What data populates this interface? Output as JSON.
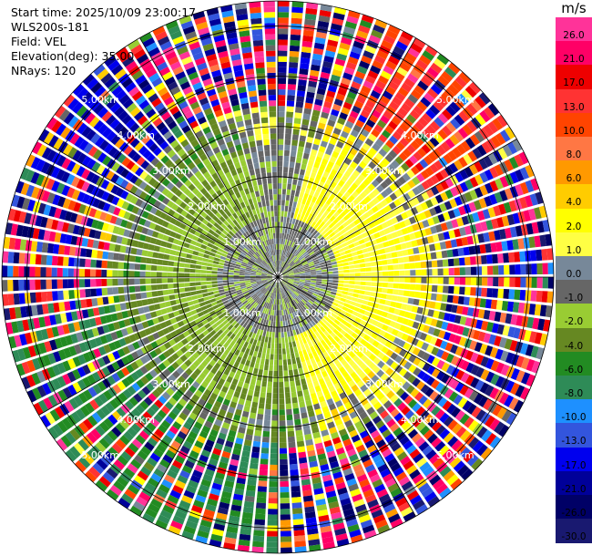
{
  "info": {
    "start_time": "Start time: 2025/10/09 23:00:17",
    "site": "WLS200s-181",
    "field": "Field: VEL",
    "elevation": "Elevation(deg): 35.00",
    "nrays": "NRays: 120"
  },
  "colorbar": {
    "unit": "m/s",
    "levels": [
      {
        "label": "26.0",
        "color": "#ff3399"
      },
      {
        "label": "21.0",
        "color": "#ff0066"
      },
      {
        "label": "17.0",
        "color": "#ee0000"
      },
      {
        "label": "13.0",
        "color": "#ff3333"
      },
      {
        "label": "10.0",
        "color": "#ff4400"
      },
      {
        "label": "8.0",
        "color": "#ff7744"
      },
      {
        "label": "6.0",
        "color": "#ff9900"
      },
      {
        "label": "4.0",
        "color": "#ffcc00"
      },
      {
        "label": "2.0",
        "color": "#ffff00"
      },
      {
        "label": "1.0",
        "color": "#ffff44"
      },
      {
        "label": "0.0",
        "color": "#778899"
      },
      {
        "label": "-1.0",
        "color": "#666666"
      },
      {
        "label": "-2.0",
        "color": "#99cc33"
      },
      {
        "label": "-4.0",
        "color": "#668822"
      },
      {
        "label": "-6.0",
        "color": "#228b22"
      },
      {
        "label": "-8.0",
        "color": "#2e8b57"
      },
      {
        "label": "-10.0",
        "color": "#1e90ff"
      },
      {
        "label": "-13.0",
        "color": "#3355dd"
      },
      {
        "label": "-17.0",
        "color": "#0000ee"
      },
      {
        "label": "-21.0",
        "color": "#000099"
      },
      {
        "label": "-26.0",
        "color": "#000066"
      },
      {
        "label": "-30.0",
        "color": "#191970"
      }
    ]
  },
  "chart_data": {
    "type": "heatmap",
    "projection": "polar",
    "field": "VEL",
    "unit": "m/s",
    "nrays": 120,
    "elevation_deg": 35.0,
    "range_rings_km": [
      1.0,
      2.0,
      3.0,
      4.0,
      5.0
    ],
    "range_ring_labels": [
      "1.00km",
      "2.00km",
      "3.00km",
      "4.00km",
      "5.00km"
    ],
    "max_range_km": 5.5,
    "sectors_approx": [
      {
        "azimuth_deg": [
          15,
          165
        ],
        "range_km": [
          0.1,
          3.3
        ],
        "velocity_ms": 2.0
      },
      {
        "azimuth_deg": [
          165,
          345
        ],
        "range_km": [
          0.1,
          3.3
        ],
        "velocity_ms": -2.0
      },
      {
        "azimuth_deg": [
          0,
          360
        ],
        "range_km": [
          0.1,
          1.2
        ],
        "velocity_ms": -0.5
      },
      {
        "azimuth_deg": [
          25,
          60
        ],
        "range_km": [
          3.5,
          5.5
        ],
        "velocity_ms": 13.0
      },
      {
        "azimuth_deg": [
          290,
          325
        ],
        "range_km": [
          3.5,
          5.5
        ],
        "velocity_ms": -17.0
      },
      {
        "azimuth_deg": [
          180,
          260
        ],
        "range_km": [
          3.3,
          5.5
        ],
        "velocity_ms": -6.0
      }
    ],
    "grid": true
  }
}
